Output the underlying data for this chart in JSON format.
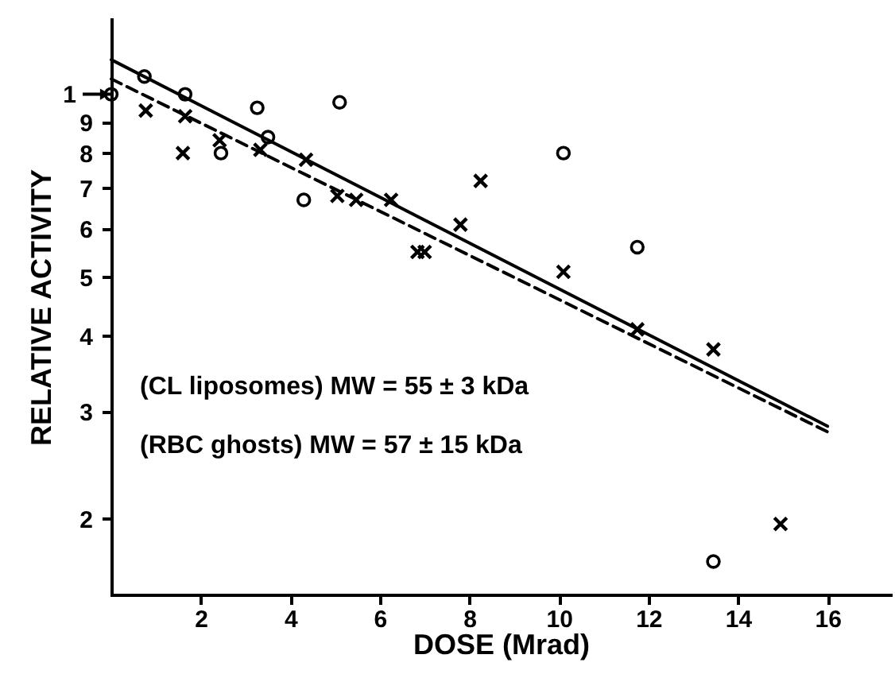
{
  "chart_data": {
    "type": "scatter",
    "xlabel": "DOSE (Mrad)",
    "ylabel": "RELATIVE ACTIVITY",
    "log": "y",
    "grid": false,
    "xlim": [
      0,
      17.4
    ],
    "xticks": [
      2,
      4,
      6,
      8,
      10,
      12,
      14,
      16
    ],
    "ylim": [
      1.5,
      13.3
    ],
    "yticks": [
      9,
      8,
      7,
      6,
      5,
      4,
      3,
      2
    ],
    "series": [
      {
        "marker": "circle",
        "color": "#000000",
        "x": [
          0,
          0.74,
          1.65,
          2.45,
          3.26,
          3.5,
          4.3,
          5.1,
          10.1,
          11.75,
          13.45
        ],
        "values": [
          10.0,
          10.7,
          10.0,
          8.0,
          9.5,
          8.5,
          6.7,
          9.7,
          8.0,
          5.6,
          1.7
        ]
      },
      {
        "marker": "cross",
        "color": "#000000",
        "x": [
          0.77,
          1.65,
          1.6,
          2.42,
          3.33,
          4.35,
          5.05,
          5.47,
          6.25,
          6.84,
          7.0,
          7.8,
          8.25,
          10.1,
          11.75,
          13.45,
          14.95
        ],
        "values": [
          9.4,
          9.2,
          8.0,
          8.4,
          8.1,
          7.8,
          6.8,
          6.7,
          6.7,
          5.5,
          5.5,
          6.1,
          7.2,
          5.1,
          4.1,
          3.8,
          1.96
        ]
      },
      {
        "type": "line",
        "line_style": "solid",
        "color": "#000000",
        "x": [
          0,
          16
        ],
        "values": [
          11.4,
          2.84
        ]
      },
      {
        "type": "line",
        "line_style": "dashed",
        "color": "#000000",
        "x": [
          0,
          16
        ],
        "values": [
          10.6,
          2.78
        ]
      }
    ],
    "annotations": [
      {
        "text": "1",
        "x": 0,
        "y": 10
      },
      "(CL liposomes)  MW = 55 ± 3 kDa",
      "(RBC ghosts)  MW = 57 ± 15 kDa"
    ]
  }
}
